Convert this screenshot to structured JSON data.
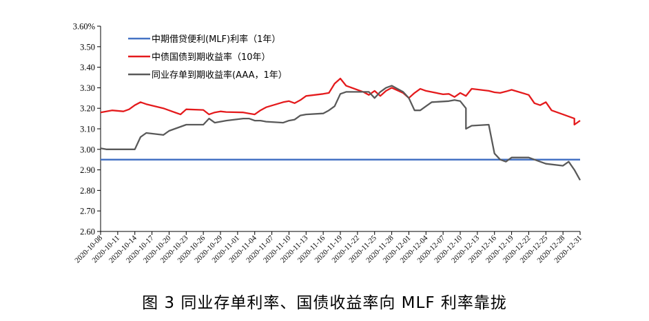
{
  "caption": "图 3   同业存单利率、国债收益率向 MLF 利率靠拢",
  "colors": {
    "mlf": "#4472C4",
    "bond": "#E41A1C",
    "cd": "#595959",
    "axis": "#000000"
  },
  "chart_data": {
    "type": "line",
    "title": "",
    "xlabel": "",
    "ylabel": "",
    "ylim": [
      2.6,
      3.6
    ],
    "y_ticks": [
      "3.60%",
      "3.50",
      "3.40",
      "3.30",
      "3.20",
      "3.10",
      "3.00",
      "2.90",
      "2.80",
      "2.70",
      "2.60"
    ],
    "y_tick_values": [
      3.6,
      3.5,
      3.4,
      3.3,
      3.2,
      3.1,
      3.0,
      2.9,
      2.8,
      2.7,
      2.6
    ],
    "x_ticks": [
      "2020-10-08",
      "2020-10-11",
      "2020-10-14",
      "2020-10-17",
      "2020-10-20",
      "2020-10-23",
      "2020-10-26",
      "2020-10-29",
      "2020-11-01",
      "2020-11-04",
      "2020-11-07",
      "2020-11-10",
      "2020-11-13",
      "2020-11-16",
      "2020-11-19",
      "2020-11-22",
      "2020-11-25",
      "2020-11-28",
      "2020-12-01",
      "2020-12-04",
      "2020-12-07",
      "2020-12-10",
      "2020-12-13",
      "2020-12-16",
      "2020-12-19",
      "2020-12-22",
      "2020-12-25",
      "2020-12-28",
      "2020-12-31"
    ],
    "x_start": "2020-10-08",
    "x_end": "2020-12-31",
    "legend": "top-left",
    "grid": false,
    "series": [
      {
        "name": "中期借贷便利(MLF)利率（1年）",
        "key": "mlf",
        "points": [
          [
            "2020-10-08",
            2.95
          ],
          [
            "2020-12-31",
            2.95
          ]
        ]
      },
      {
        "name": "中债国债到期收益率（10年）",
        "key": "bond",
        "points": [
          [
            "2020-10-08",
            3.18
          ],
          [
            "2020-10-09",
            3.185
          ],
          [
            "2020-10-10",
            3.19
          ],
          [
            "2020-10-12",
            3.185
          ],
          [
            "2020-10-13",
            3.195
          ],
          [
            "2020-10-14",
            3.215
          ],
          [
            "2020-10-15",
            3.23
          ],
          [
            "2020-10-16",
            3.22
          ],
          [
            "2020-10-19",
            3.2
          ],
          [
            "2020-10-20",
            3.19
          ],
          [
            "2020-10-22",
            3.17
          ],
          [
            "2020-10-23",
            3.195
          ],
          [
            "2020-10-26",
            3.192
          ],
          [
            "2020-10-27",
            3.17
          ],
          [
            "2020-10-28",
            3.18
          ],
          [
            "2020-10-29",
            3.185
          ],
          [
            "2020-10-30",
            3.182
          ],
          [
            "2020-11-02",
            3.18
          ],
          [
            "2020-11-03",
            3.175
          ],
          [
            "2020-11-04",
            3.17
          ],
          [
            "2020-11-05",
            3.19
          ],
          [
            "2020-11-06",
            3.205
          ],
          [
            "2020-11-09",
            3.23
          ],
          [
            "2020-11-10",
            3.235
          ],
          [
            "2020-11-11",
            3.225
          ],
          [
            "2020-11-12",
            3.24
          ],
          [
            "2020-11-13",
            3.26
          ],
          [
            "2020-11-16",
            3.27
          ],
          [
            "2020-11-17",
            3.275
          ],
          [
            "2020-11-18",
            3.32
          ],
          [
            "2020-11-19",
            3.345
          ],
          [
            "2020-11-20",
            3.31
          ],
          [
            "2020-11-23",
            3.28
          ],
          [
            "2020-11-24",
            3.265
          ],
          [
            "2020-11-25",
            3.285
          ],
          [
            "2020-11-26",
            3.26
          ],
          [
            "2020-11-27",
            3.285
          ],
          [
            "2020-11-28",
            3.3
          ],
          [
            "2020-11-30",
            3.275
          ],
          [
            "2020-12-01",
            3.25
          ],
          [
            "2020-12-02",
            3.275
          ],
          [
            "2020-12-03",
            3.295
          ],
          [
            "2020-12-04",
            3.285
          ],
          [
            "2020-12-07",
            3.268
          ],
          [
            "2020-12-08",
            3.27
          ],
          [
            "2020-12-09",
            3.255
          ],
          [
            "2020-12-10",
            3.275
          ],
          [
            "2020-12-11",
            3.26
          ],
          [
            "2020-12-12",
            3.295
          ],
          [
            "2020-12-15",
            3.285
          ],
          [
            "2020-12-16",
            3.278
          ],
          [
            "2020-12-17",
            3.275
          ],
          [
            "2020-12-18",
            3.282
          ],
          [
            "2020-12-19",
            3.29
          ],
          [
            "2020-12-22",
            3.265
          ],
          [
            "2020-12-23",
            3.225
          ],
          [
            "2020-12-24",
            3.215
          ],
          [
            "2020-12-25",
            3.23
          ],
          [
            "2020-12-26",
            3.19
          ],
          [
            "2020-12-28",
            3.17
          ],
          [
            "2020-12-29",
            3.16
          ],
          [
            "2020-12-30",
            3.15
          ],
          [
            "2020-12-30",
            3.12
          ],
          [
            "2020-12-31",
            3.14
          ]
        ]
      },
      {
        "name": "同业存单到期收益率(AAA，1年）",
        "key": "cd",
        "points": [
          [
            "2020-10-08",
            3.005
          ],
          [
            "2020-10-09",
            3.0
          ],
          [
            "2020-10-13",
            3.0
          ],
          [
            "2020-10-14",
            3.0
          ],
          [
            "2020-10-15",
            3.06
          ],
          [
            "2020-10-16",
            3.08
          ],
          [
            "2020-10-19",
            3.07
          ],
          [
            "2020-10-20",
            3.09
          ],
          [
            "2020-10-22",
            3.11
          ],
          [
            "2020-10-23",
            3.12
          ],
          [
            "2020-10-26",
            3.12
          ],
          [
            "2020-10-27",
            3.15
          ],
          [
            "2020-10-28",
            3.13
          ],
          [
            "2020-10-29",
            3.135
          ],
          [
            "2020-10-30",
            3.14
          ],
          [
            "2020-11-02",
            3.15
          ],
          [
            "2020-11-03",
            3.15
          ],
          [
            "2020-11-04",
            3.14
          ],
          [
            "2020-11-05",
            3.14
          ],
          [
            "2020-11-06",
            3.135
          ],
          [
            "2020-11-09",
            3.13
          ],
          [
            "2020-11-10",
            3.14
          ],
          [
            "2020-11-11",
            3.145
          ],
          [
            "2020-11-12",
            3.165
          ],
          [
            "2020-11-13",
            3.17
          ],
          [
            "2020-11-16",
            3.175
          ],
          [
            "2020-11-17",
            3.19
          ],
          [
            "2020-11-18",
            3.21
          ],
          [
            "2020-11-19",
            3.27
          ],
          [
            "2020-11-20",
            3.28
          ],
          [
            "2020-11-23",
            3.28
          ],
          [
            "2020-11-24",
            3.28
          ],
          [
            "2020-11-25",
            3.25
          ],
          [
            "2020-11-26",
            3.28
          ],
          [
            "2020-11-27",
            3.3
          ],
          [
            "2020-11-28",
            3.31
          ],
          [
            "2020-11-30",
            3.28
          ],
          [
            "2020-12-01",
            3.25
          ],
          [
            "2020-12-02",
            3.19
          ],
          [
            "2020-12-03",
            3.19
          ],
          [
            "2020-12-04",
            3.21
          ],
          [
            "2020-12-05",
            3.23
          ],
          [
            "2020-12-08",
            3.235
          ],
          [
            "2020-12-09",
            3.24
          ],
          [
            "2020-12-10",
            3.235
          ],
          [
            "2020-12-11",
            3.2
          ],
          [
            "2020-12-11",
            3.1
          ],
          [
            "2020-12-12",
            3.115
          ],
          [
            "2020-12-15",
            3.12
          ],
          [
            "2020-12-16",
            2.98
          ],
          [
            "2020-12-17",
            2.95
          ],
          [
            "2020-12-18",
            2.94
          ],
          [
            "2020-12-19",
            2.96
          ],
          [
            "2020-12-22",
            2.96
          ],
          [
            "2020-12-23",
            2.95
          ],
          [
            "2020-12-24",
            2.94
          ],
          [
            "2020-12-25",
            2.93
          ],
          [
            "2020-12-28",
            2.92
          ],
          [
            "2020-12-29",
            2.94
          ],
          [
            "2020-12-30",
            2.9
          ],
          [
            "2020-12-31",
            2.85
          ]
        ]
      }
    ]
  }
}
